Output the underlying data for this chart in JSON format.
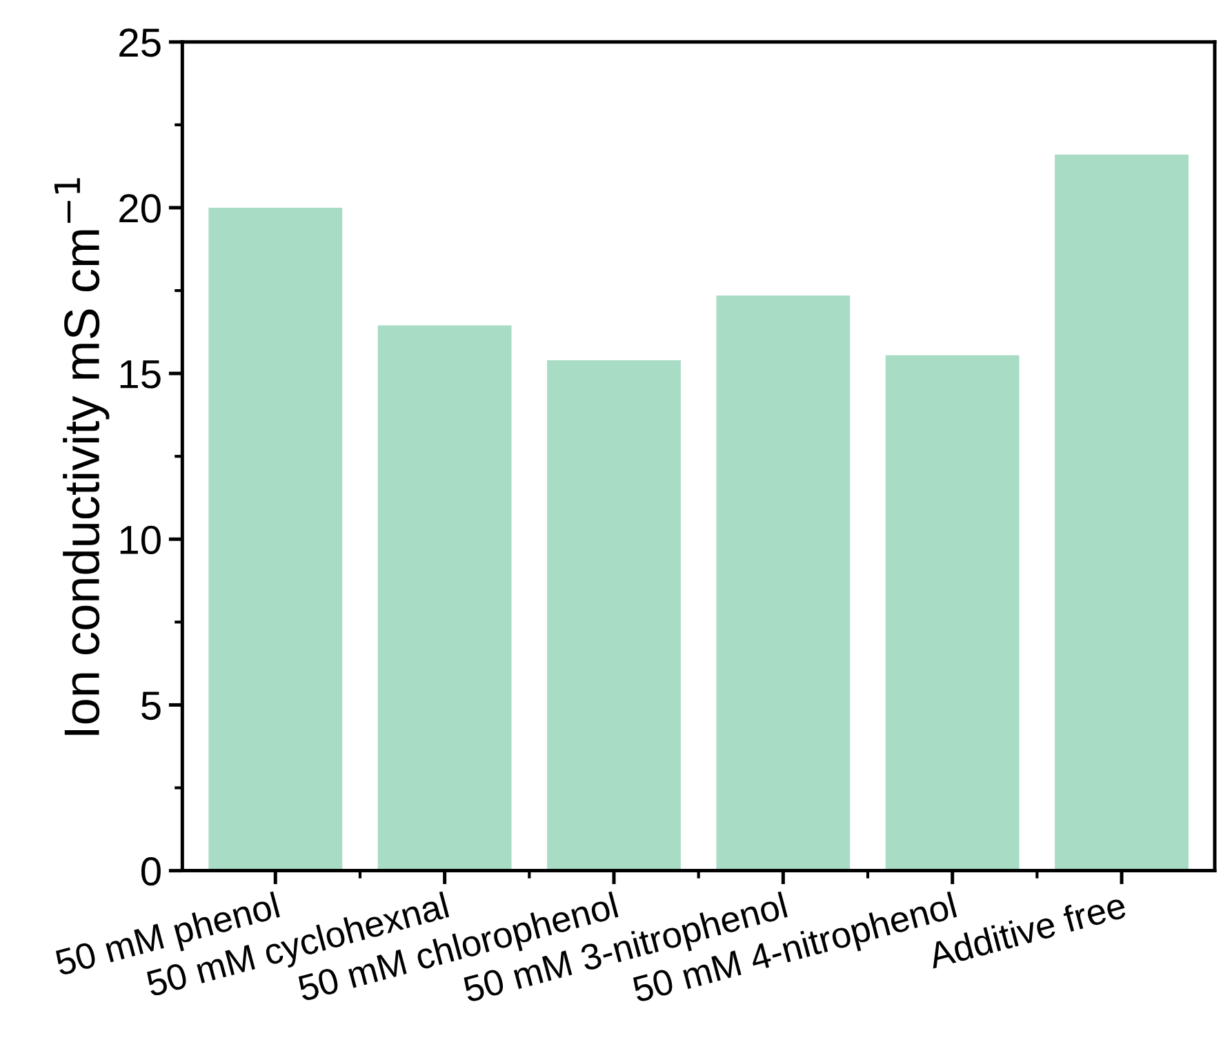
{
  "chart_data": {
    "type": "bar",
    "categories": [
      "50 mM phenol",
      "50 mM cyclohexnal",
      "50 mM chlorophenol",
      "50 mM 3-nitrophenol",
      "50 mM 4-nitrophenol",
      "Additive free"
    ],
    "values": [
      20.0,
      16.45,
      15.4,
      17.35,
      15.55,
      21.6
    ],
    "color": "#a8dcc4",
    "ylabel": "Ion conductivity mS cm$^{−1}$",
    "ylim": [
      0,
      25
    ],
    "yticks": [
      0,
      5,
      10,
      15,
      20,
      25
    ],
    "grid": false
  }
}
